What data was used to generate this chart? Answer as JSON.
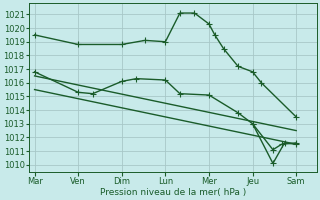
{
  "bg_color": "#c8eaea",
  "grid_color": "#a8c8c8",
  "line_color": "#1a5c2a",
  "xlabel": "Pression niveau de la mer( hPa )",
  "ylim": [
    1009.5,
    1021.8
  ],
  "yticks": [
    1010,
    1011,
    1012,
    1013,
    1014,
    1015,
    1016,
    1017,
    1018,
    1019,
    1020,
    1021
  ],
  "x_labels": [
    "Mar",
    "Ven",
    "Dim",
    "Lun",
    "Mer",
    "Jeu",
    "Sam"
  ],
  "x_ticks": [
    0,
    1.5,
    3,
    4.5,
    6,
    7.5,
    9
  ],
  "xlim": [
    -0.2,
    9.7
  ],
  "line1_x": [
    0,
    1.5,
    3,
    3.8,
    4.5,
    5.0,
    5.5,
    6.0,
    6.2,
    6.5,
    7.0,
    7.5,
    7.8,
    9.0
  ],
  "line1_y": [
    1019.5,
    1018.8,
    1018.8,
    1019.1,
    1019.0,
    1021.1,
    1021.1,
    1020.3,
    1019.5,
    1018.5,
    1017.2,
    1016.8,
    1016.0,
    1013.5
  ],
  "line2_x": [
    0,
    1.5,
    2.0,
    3.0,
    3.5,
    4.5,
    5.0,
    6.0,
    7.0,
    7.5,
    8.2,
    8.5,
    9.0
  ],
  "line2_y": [
    1016.8,
    1015.3,
    1015.2,
    1016.1,
    1016.3,
    1016.2,
    1015.2,
    1015.1,
    1013.8,
    1013.0,
    1011.1,
    1011.5,
    1011.6
  ],
  "line3_x": [
    0,
    9.0
  ],
  "line3_y": [
    1016.5,
    1012.5
  ],
  "line4_x": [
    0,
    9.0
  ],
  "line4_y": [
    1015.5,
    1011.5
  ],
  "line5_x": [
    7.5,
    8.2,
    8.6,
    9.0
  ],
  "line5_y": [
    1013.0,
    1010.1,
    1011.6,
    1011.5
  ]
}
